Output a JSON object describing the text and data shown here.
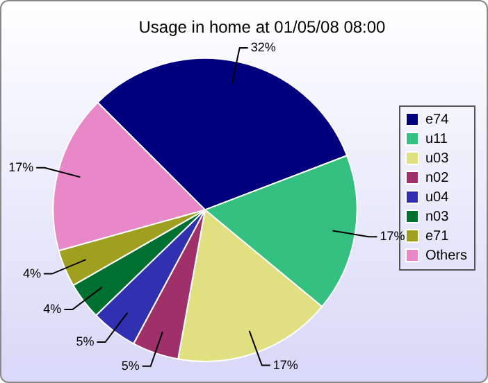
{
  "chart_data": {
    "type": "pie",
    "title": "Usage in home at 01/05/08 08:00",
    "categories": [
      "e74",
      "u11",
      "u03",
      "n02",
      "u04",
      "n03",
      "e71",
      "Others"
    ],
    "values": [
      32,
      17,
      17,
      5,
      5,
      4,
      4,
      17
    ],
    "value_labels": [
      "32%",
      "17%",
      "17%",
      "5%",
      "5%",
      "4%",
      "4%",
      "17%"
    ],
    "colors": [
      "#00007f",
      "#33c080",
      "#e0e080",
      "#a0306a",
      "#3030b0",
      "#007030",
      "#a0a020",
      "#e888c8"
    ],
    "legend": "right"
  }
}
